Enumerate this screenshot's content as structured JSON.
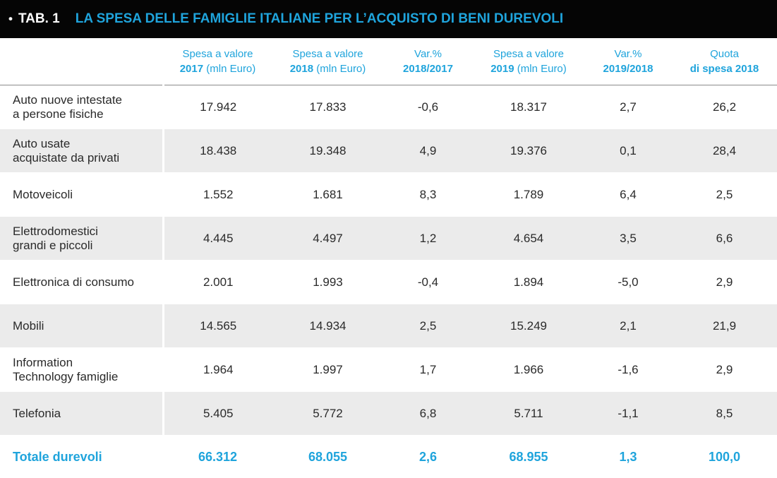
{
  "header": {
    "bullet": "•",
    "tab": "TAB. 1",
    "title": "LA SPESA DELLE FAMIGLIE ITALIANE PER L’ACQUISTO DI BENI DUREVOLI"
  },
  "columns": [
    {
      "strong": "Spesa a valore",
      "line2_strong": "2017",
      "line2_rest": " (mln Euro)"
    },
    {
      "strong": "Spesa a valore",
      "line2_strong": "2018",
      "line2_rest": " (mln Euro)"
    },
    {
      "strong": "Var.%",
      "line2_strong": "2018/2017",
      "line2_rest": ""
    },
    {
      "strong": "Spesa a valore",
      "line2_strong": "2019",
      "line2_rest": " (mln Euro)"
    },
    {
      "strong": "Var.%",
      "line2_strong": "2019/2018",
      "line2_rest": ""
    },
    {
      "strong": "Quota",
      "line2_strong": "di spesa 2018",
      "line2_rest": ""
    }
  ],
  "rows": [
    {
      "label1": "Auto nuove intestate",
      "label2": "a persone fisiche",
      "values": [
        "17.942",
        "17.833",
        "-0,6",
        "18.317",
        "2,7",
        "26,2"
      ]
    },
    {
      "label1": "Auto usate",
      "label2": "acquistate da privati",
      "values": [
        "18.438",
        "19.348",
        "4,9",
        "19.376",
        "0,1",
        "28,4"
      ]
    },
    {
      "label1": "Motoveicoli",
      "label2": "",
      "values": [
        "1.552",
        "1.681",
        "8,3",
        "1.789",
        "6,4",
        "2,5"
      ]
    },
    {
      "label1": "Elettrodomestici",
      "label2": "grandi e piccoli",
      "values": [
        "4.445",
        "4.497",
        "1,2",
        "4.654",
        "3,5",
        "6,6"
      ]
    },
    {
      "label1": "Elettronica di consumo",
      "label2": "",
      "values": [
        "2.001",
        "1.993",
        "-0,4",
        "1.894",
        "-5,0",
        "2,9"
      ]
    },
    {
      "label1": "Mobili",
      "label2": "",
      "values": [
        "14.565",
        "14.934",
        "2,5",
        "15.249",
        "2,1",
        "21,9"
      ]
    },
    {
      "label1": "Information",
      "label2": "Technology famiglie",
      "values": [
        "1.964",
        "1.997",
        "1,7",
        "1.966",
        "-1,6",
        "2,9"
      ]
    },
    {
      "label1": "Telefonia",
      "label2": "",
      "values": [
        "5.405",
        "5.772",
        "6,8",
        "5.711",
        "-1,1",
        "8,5"
      ]
    }
  ],
  "total": {
    "label": "Totale durevoli",
    "values": [
      "66.312",
      "68.055",
      "2,6",
      "68.955",
      "1,3",
      "100,0"
    ]
  },
  "colors": {
    "accent": "#1fa4dc",
    "title_bar": "#050505",
    "row_shade": "#ebebeb"
  }
}
